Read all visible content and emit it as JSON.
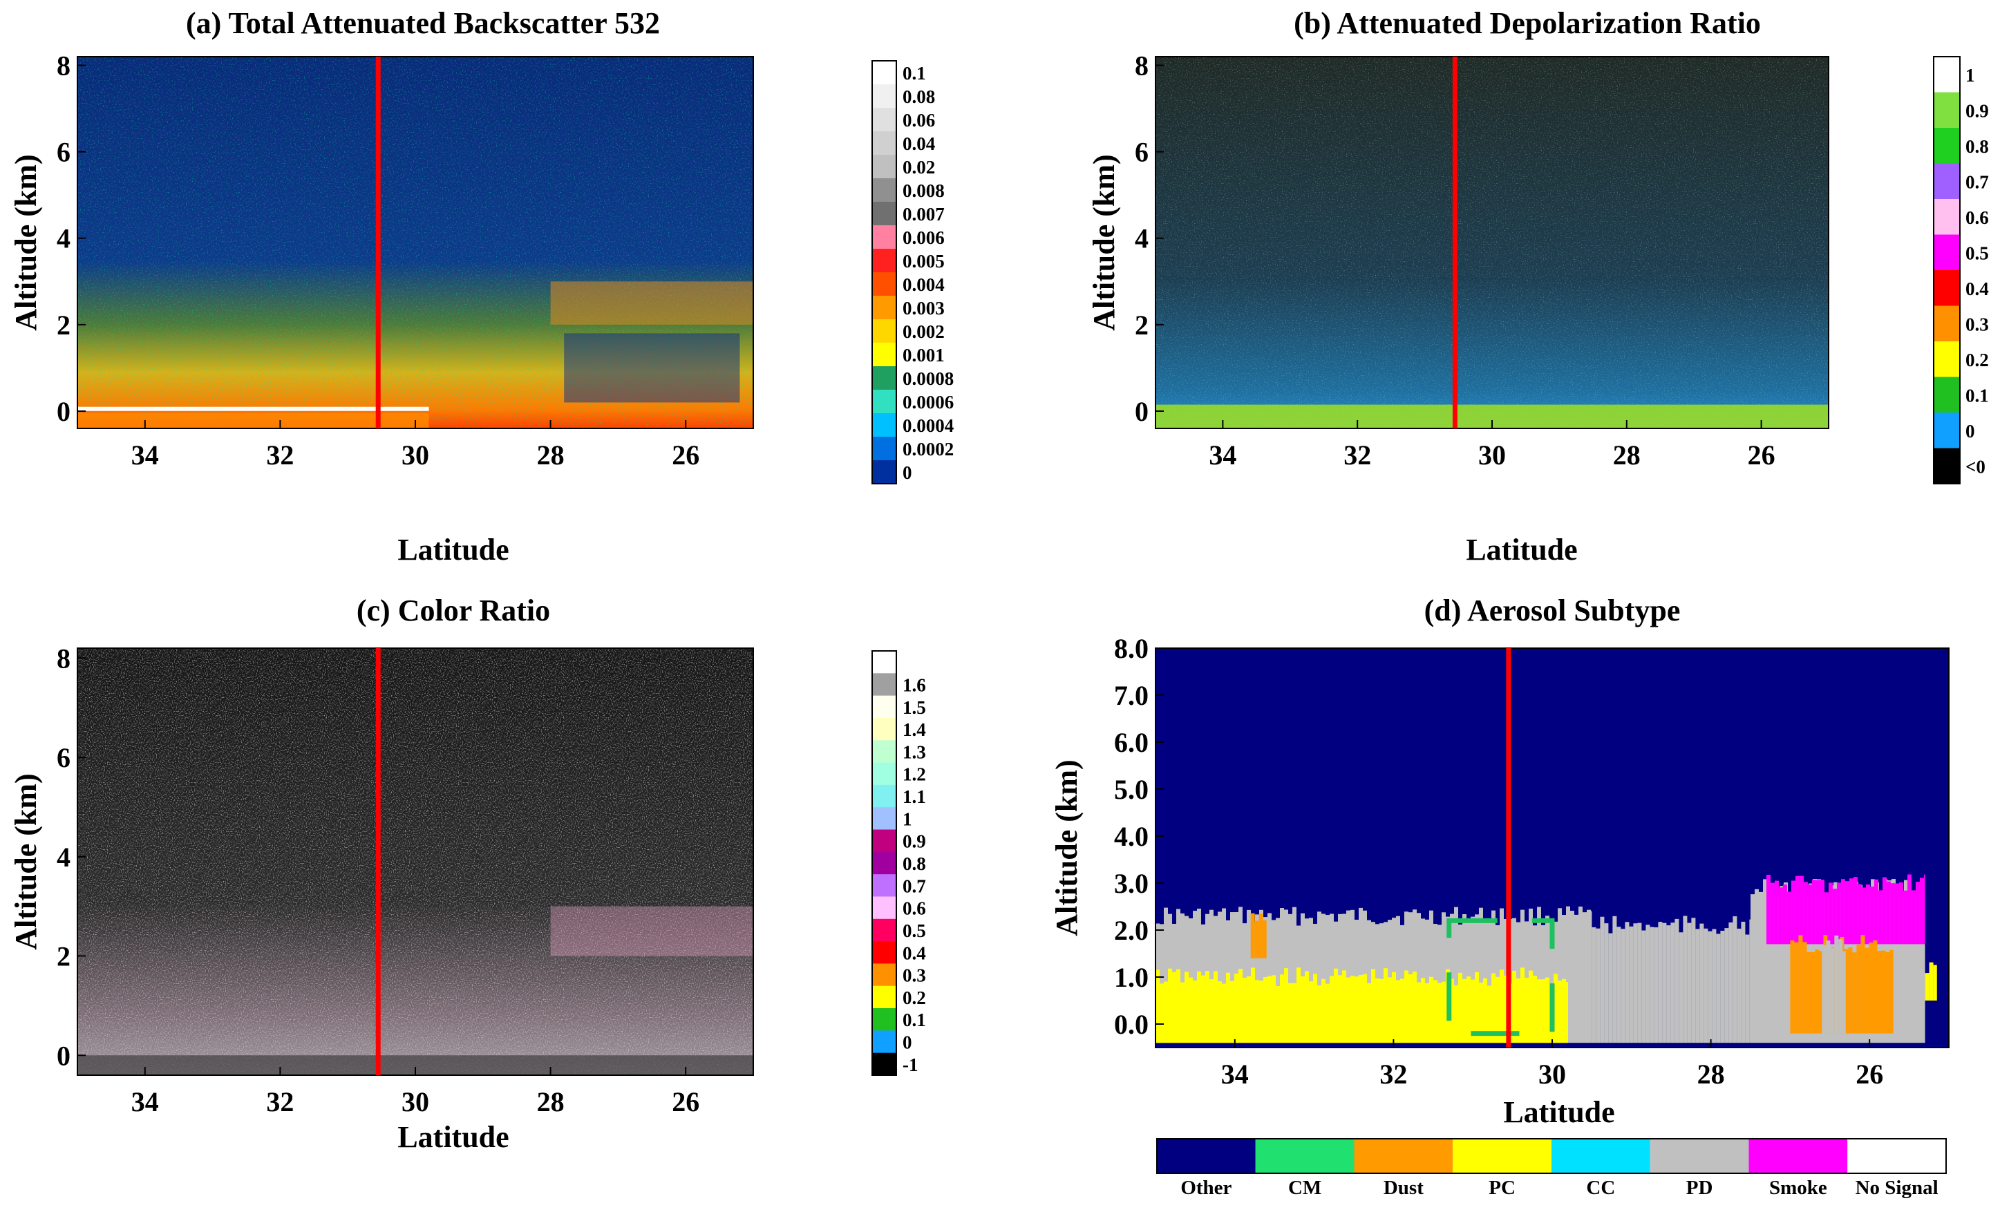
{
  "chart_data": [
    {
      "type": "heatmap",
      "title": "(a) Total Attenuated Backscatter 532",
      "xlabel": "Latitude",
      "ylabel": "Altitude (km)",
      "xlim": [
        35,
        25
      ],
      "ylim": [
        -0.4,
        8.2
      ],
      "x_ticks": [
        "34",
        "32",
        "30",
        "28",
        "26"
      ],
      "y_ticks": [
        "8",
        "6",
        "4",
        "2",
        "0"
      ],
      "marker_latitude": 30.55,
      "colorbar_labels": [
        "0.1",
        "0.08",
        "0.06",
        "0.04",
        "0.02",
        "0.008",
        "0.007",
        "0.006",
        "0.005",
        "0.004",
        "0.003",
        "0.002",
        "0.001",
        "0.0008",
        "0.0006",
        "0.0004",
        "0.0002",
        "0"
      ],
      "colorbar_colors": [
        "#ffffff",
        "#f0f0f0",
        "#e0e0e0",
        "#d0d0d0",
        "#c0c0c0",
        "#909090",
        "#707070",
        "#ff80a0",
        "#ff2020",
        "#ff5000",
        "#ff9a00",
        "#ffd700",
        "#ffff00",
        "#20a060",
        "#30e0c0",
        "#00c0ff",
        "#0070e0",
        "#0030a0"
      ]
    },
    {
      "type": "heatmap",
      "title": "(b) Attenuated Depolarization Ratio",
      "xlabel": "Latitude",
      "ylabel": "Altitude (km)",
      "xlim": [
        35,
        25
      ],
      "ylim": [
        -0.4,
        8.2
      ],
      "x_ticks": [
        "34",
        "32",
        "30",
        "28",
        "26"
      ],
      "y_ticks": [
        "8",
        "6",
        "4",
        "2",
        "0"
      ],
      "marker_latitude": 30.55,
      "colorbar_labels": [
        "1",
        "0.9",
        "0.8",
        "0.7",
        "0.6",
        "0.5",
        "0.4",
        "0.3",
        "0.2",
        "0.1",
        "0",
        "<0"
      ],
      "colorbar_colors": [
        "#ffffff",
        "#80e040",
        "#20d020",
        "#a060ff",
        "#ffc0f0",
        "#ff00ff",
        "#ff0000",
        "#ff9000",
        "#ffff00",
        "#20c020",
        "#10a0ff",
        "#000000"
      ]
    },
    {
      "type": "heatmap",
      "title": "(c) Color Ratio",
      "xlabel": "Latitude",
      "ylabel": "Altitude (km)",
      "xlim": [
        35,
        25
      ],
      "ylim": [
        -0.4,
        8.2
      ],
      "x_ticks": [
        "34",
        "32",
        "30",
        "28",
        "26"
      ],
      "y_ticks": [
        "8",
        "6",
        "4",
        "2",
        "0"
      ],
      "marker_latitude": 30.55,
      "colorbar_labels": [
        "1.6",
        "1.5",
        "1.4",
        "1.3",
        "1.2",
        "1.1",
        "1",
        "0.9",
        "0.8",
        "0.7",
        "0.6",
        "0.5",
        "0.4",
        "0.3",
        "0.2",
        "0.1",
        "0",
        "-1"
      ],
      "colorbar_colors": [
        "#ffffff",
        "#a0a0a0",
        "#fffff0",
        "#ffffc0",
        "#c0ffd0",
        "#a0ffe0",
        "#80f0f0",
        "#a0c0ff",
        "#c0007f",
        "#a000a0",
        "#c070ff",
        "#ffc0ff",
        "#ff0060",
        "#ff0000",
        "#ff9000",
        "#ffff00",
        "#20c020",
        "#10a0ff",
        "#000000"
      ]
    },
    {
      "type": "heatmap",
      "title": "(d) Aerosol Subtype",
      "xlabel": "Latitude",
      "ylabel": "Altitude (km)",
      "xlim": [
        35,
        25
      ],
      "ylim": [
        -0.5,
        8.0
      ],
      "x_ticks": [
        "34",
        "32",
        "30",
        "28",
        "26"
      ],
      "y_ticks": [
        "8.0",
        "7.0",
        "6.0",
        "5.0",
        "4.0",
        "3.0",
        "2.0",
        "1.0",
        "0.0"
      ],
      "marker_latitude": 30.55,
      "highlight_box": {
        "lat_from": 31.3,
        "lat_to": 30.0,
        "alt_from": -0.2,
        "alt_to": 2.2
      },
      "legend": [
        {
          "label": "Other",
          "color": "#000080"
        },
        {
          "label": "CM",
          "color": "#20e070"
        },
        {
          "label": "Dust",
          "color": "#ff9a00"
        },
        {
          "label": "PC",
          "color": "#ffff00"
        },
        {
          "label": "CC",
          "color": "#00e0ff"
        },
        {
          "label": "PD",
          "color": "#c0c0c0"
        },
        {
          "label": "Smoke",
          "color": "#ff00ff"
        },
        {
          "label": "No Signal",
          "color": "#ffffff"
        }
      ],
      "layers": [
        {
          "subtype": "PD",
          "lat_from": 35.0,
          "lat_to": 29.5,
          "alt_from": -0.4,
          "alt_to": 2.3
        },
        {
          "subtype": "PC",
          "lat_from": 35.0,
          "lat_to": 29.8,
          "alt_from": -0.4,
          "alt_to": 1.0
        },
        {
          "subtype": "Dust",
          "lat_from": 33.8,
          "lat_to": 33.6,
          "alt_from": 1.4,
          "alt_to": 2.3
        },
        {
          "subtype": "PD",
          "lat_from": 29.5,
          "lat_to": 27.5,
          "alt_from": -0.4,
          "alt_to": 2.1
        },
        {
          "subtype": "PD",
          "lat_from": 27.5,
          "lat_to": 25.3,
          "alt_from": -0.4,
          "alt_to": 2.9
        },
        {
          "subtype": "Smoke",
          "lat_from": 27.3,
          "lat_to": 25.3,
          "alt_from": 1.7,
          "alt_to": 3.0
        },
        {
          "subtype": "Dust",
          "lat_from": 27.0,
          "lat_to": 25.7,
          "alt_from": -0.2,
          "alt_to": 1.7
        },
        {
          "subtype": "PD",
          "lat_from": 26.6,
          "lat_to": 26.3,
          "alt_from": -0.2,
          "alt_to": 1.7
        },
        {
          "subtype": "PC",
          "lat_from": 25.3,
          "lat_to": 25.15,
          "alt_from": 0.5,
          "alt_to": 1.2
        }
      ]
    }
  ]
}
